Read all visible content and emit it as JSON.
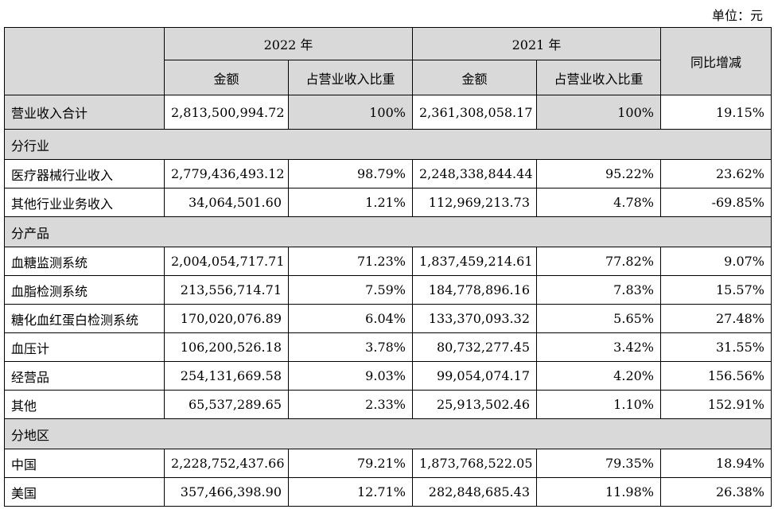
{
  "unit_label": "单位：元",
  "header": {
    "year_2022": "2022 年",
    "year_2021": "2021 年",
    "amount": "金额",
    "share": "占营业收入比重",
    "yoy": "同比增减"
  },
  "total": {
    "label": "营业收入合计",
    "amt_2022": "2,813,500,994.72",
    "pct_2022": "100%",
    "amt_2021": "2,361,308,058.17",
    "pct_2021": "100%",
    "yoy": "19.15%"
  },
  "sections": [
    {
      "title": "分行业",
      "rows": [
        {
          "label": "医疗器械行业收入",
          "amt_2022": "2,779,436,493.12",
          "pct_2022": "98.79%",
          "amt_2021": "2,248,338,844.44",
          "pct_2021": "95.22%",
          "yoy": "23.62%"
        },
        {
          "label": "其他行业业务收入",
          "amt_2022": "34,064,501.60",
          "pct_2022": "1.21%",
          "amt_2021": "112,969,213.73",
          "pct_2021": "4.78%",
          "yoy": "-69.85%"
        }
      ]
    },
    {
      "title": "分产品",
      "rows": [
        {
          "label": "血糖监测系统",
          "amt_2022": "2,004,054,717.71",
          "pct_2022": "71.23%",
          "amt_2021": "1,837,459,214.61",
          "pct_2021": "77.82%",
          "yoy": "9.07%"
        },
        {
          "label": "血脂检测系统",
          "amt_2022": "213,556,714.71",
          "pct_2022": "7.59%",
          "amt_2021": "184,778,896.16",
          "pct_2021": "7.83%",
          "yoy": "15.57%"
        },
        {
          "label": "糖化血红蛋白检测系统",
          "amt_2022": "170,020,076.89",
          "pct_2022": "6.04%",
          "amt_2021": "133,370,093.32",
          "pct_2021": "5.65%",
          "yoy": "27.48%"
        },
        {
          "label": "血压计",
          "amt_2022": "106,200,526.18",
          "pct_2022": "3.78%",
          "amt_2021": "80,732,277.45",
          "pct_2021": "3.42%",
          "yoy": "31.55%"
        },
        {
          "label": "经营品",
          "amt_2022": "254,131,669.58",
          "pct_2022": "9.03%",
          "amt_2021": "99,054,074.17",
          "pct_2021": "4.20%",
          "yoy": "156.56%"
        },
        {
          "label": "其他",
          "amt_2022": "65,537,289.65",
          "pct_2022": "2.33%",
          "amt_2021": "25,913,502.46",
          "pct_2021": "1.10%",
          "yoy": "152.91%"
        }
      ]
    },
    {
      "title": "分地区",
      "rows": [
        {
          "label": "中国",
          "amt_2022": "2,228,752,437.66",
          "pct_2022": "79.21%",
          "amt_2021": "1,873,768,522.05",
          "pct_2021": "79.35%",
          "yoy": "18.94%"
        },
        {
          "label": "美国",
          "amt_2022": "357,466,398.90",
          "pct_2022": "12.71%",
          "amt_2021": "282,848,685.43",
          "pct_2021": "11.98%",
          "yoy": "26.38%"
        }
      ]
    }
  ]
}
